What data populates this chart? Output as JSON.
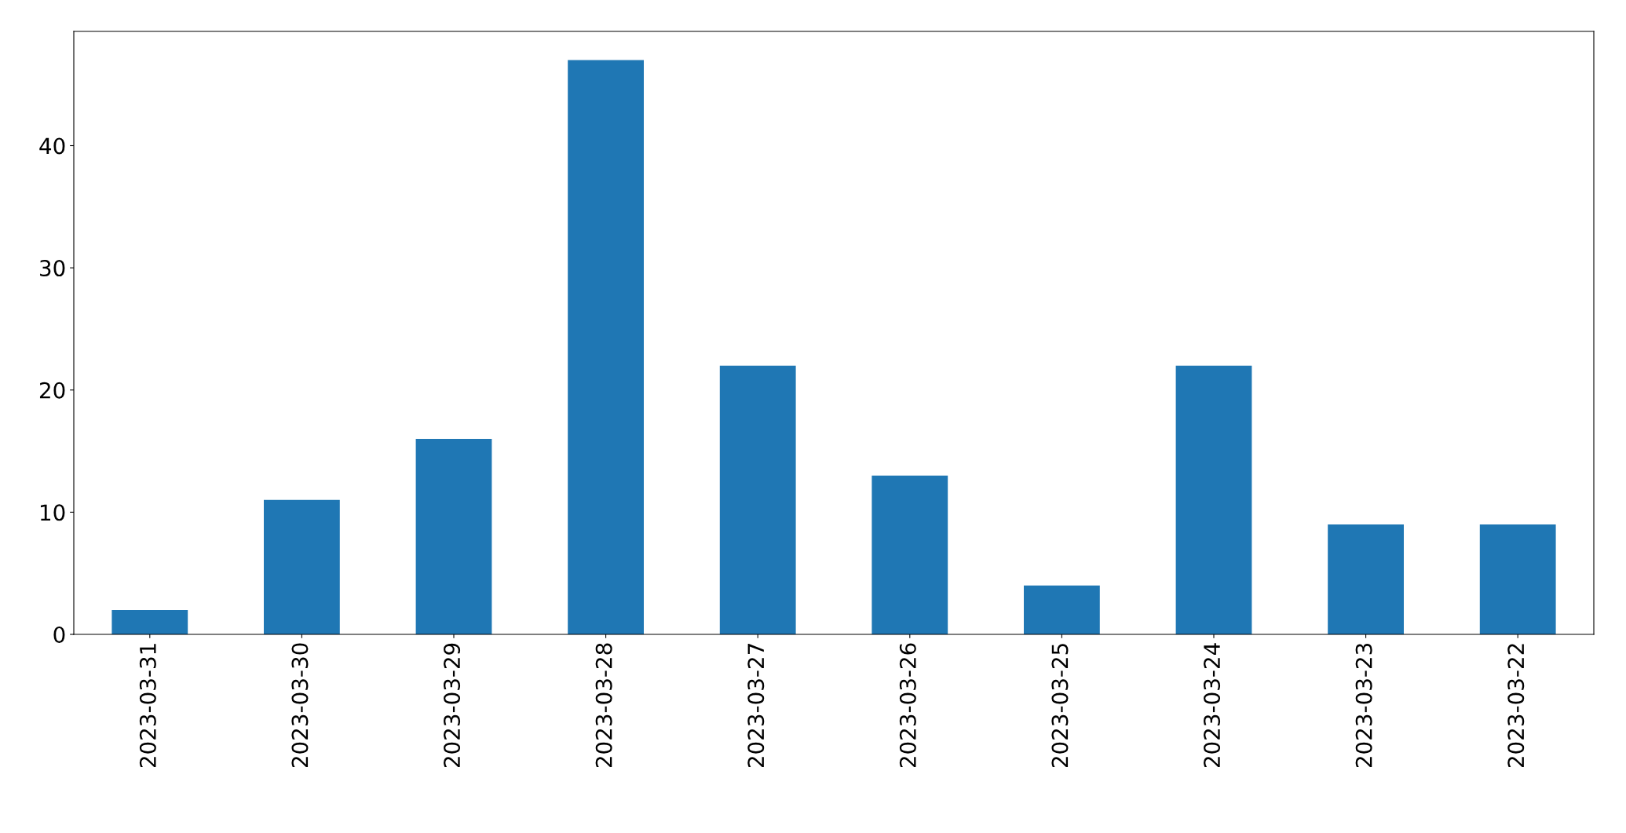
{
  "chart_data": {
    "type": "bar",
    "categories": [
      "2023-03-31",
      "2023-03-30",
      "2023-03-29",
      "2023-03-28",
      "2023-03-27",
      "2023-03-26",
      "2023-03-25",
      "2023-03-24",
      "2023-03-23",
      "2023-03-22"
    ],
    "values": [
      2,
      11,
      16,
      47,
      22,
      13,
      4,
      22,
      9,
      9
    ],
    "color": "#1f77b4",
    "ylim": [
      0,
      49.35
    ],
    "yticks": [
      0,
      10,
      20,
      30,
      40
    ],
    "grid": false,
    "legend": false
  }
}
